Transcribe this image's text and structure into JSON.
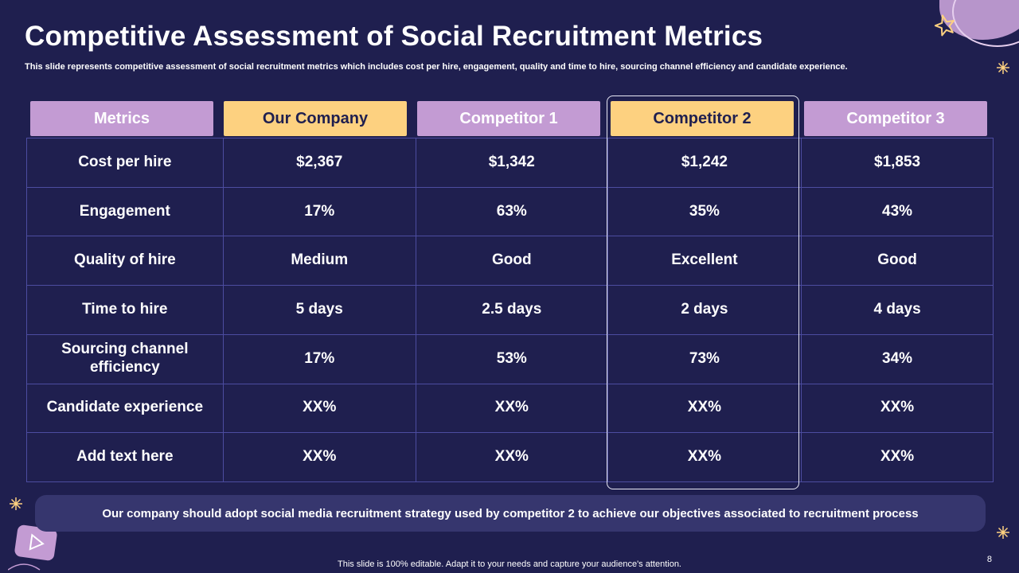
{
  "slide": {
    "title": "Competitive Assessment of Social Recruitment Metrics",
    "subtitle": "This slide represents competitive assessment of social recruitment metrics which includes cost per hire, engagement, quality and time to hire, sourcing channel efficiency and candidate experience.",
    "headers": [
      "Metrics",
      "Our Company",
      "Competitor 1",
      "Competitor 2",
      "Competitor 3"
    ],
    "rows": [
      [
        "Cost per hire",
        "$2,367",
        "$1,342",
        "$1,242",
        "$1,853"
      ],
      [
        "Engagement",
        "17%",
        "63%",
        "35%",
        "43%"
      ],
      [
        "Quality of hire",
        "Medium",
        "Good",
        "Excellent",
        "Good"
      ],
      [
        "Time to hire",
        "5 days",
        "2.5 days",
        "2 days",
        "4 days"
      ],
      [
        "Sourcing channel efficiency",
        "17%",
        "53%",
        "73%",
        "34%"
      ],
      [
        "Candidate experience",
        "XX%",
        "XX%",
        "XX%",
        "XX%"
      ],
      [
        "Add text here",
        "XX%",
        "XX%",
        "XX%",
        "XX%"
      ]
    ],
    "conclusion": "Our company should adopt social media recruitment strategy used by competitor 2 to achieve our objectives associated to recruitment process",
    "footer": "This slide is 100% editable. Adapt it to your needs and capture your audience's attention.",
    "page_number": "8"
  },
  "colors": {
    "background": "#1f1f4f",
    "header_purple": "#c39bd3",
    "header_yellow": "#fdd180",
    "grid_line": "#4c4ca0",
    "banner": "#36366e"
  },
  "icons": [
    "star-icon",
    "sparkle-icon",
    "play-icon"
  ]
}
